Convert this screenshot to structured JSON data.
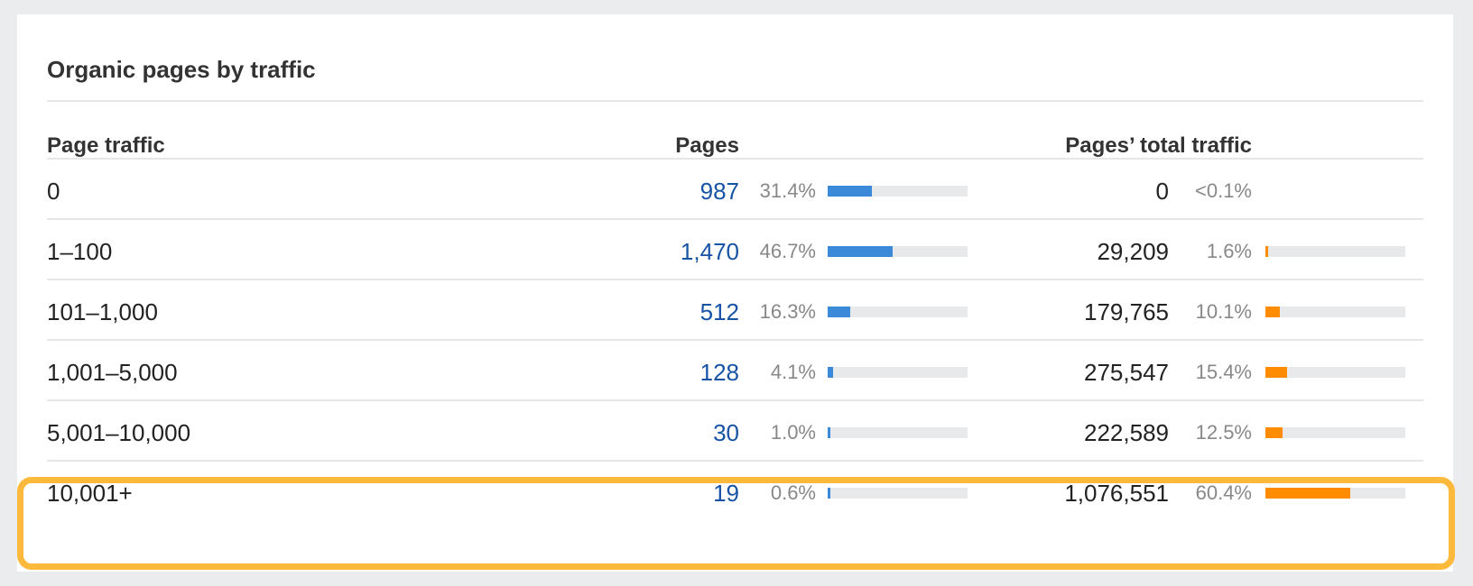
{
  "card": {
    "title": "Organic pages by traffic"
  },
  "table": {
    "headers": {
      "page_traffic": "Page traffic",
      "pages": "Pages",
      "total_traffic": "Pages’ total traffic"
    },
    "rows": [
      {
        "range": "0",
        "pages": "987",
        "pages_pct": "31.4%",
        "pages_fill": 0.314,
        "traffic": "0",
        "traffic_pct": "<0.1%",
        "traffic_fill": null
      },
      {
        "range": "1–100",
        "pages": "1,470",
        "pages_pct": "46.7%",
        "pages_fill": 0.467,
        "traffic": "29,209",
        "traffic_pct": "1.6%",
        "traffic_fill": 0.016
      },
      {
        "range": "101–1,000",
        "pages": "512",
        "pages_pct": "16.3%",
        "pages_fill": 0.163,
        "traffic": "179,765",
        "traffic_pct": "10.1%",
        "traffic_fill": 0.101
      },
      {
        "range": "1,001–5,000",
        "pages": "128",
        "pages_pct": "4.1%",
        "pages_fill": 0.041,
        "traffic": "275,547",
        "traffic_pct": "15.4%",
        "traffic_fill": 0.154
      },
      {
        "range": "5,001–10,000",
        "pages": "30",
        "pages_pct": "1.0%",
        "pages_fill": 0.01,
        "traffic": "222,589",
        "traffic_pct": "12.5%",
        "traffic_fill": 0.125
      },
      {
        "range": "10,001+",
        "pages": "19",
        "pages_pct": "0.6%",
        "pages_fill": 0.006,
        "traffic": "1,076,551",
        "traffic_pct": "60.4%",
        "traffic_fill": 0.604,
        "highlighted": true
      }
    ]
  },
  "colors": {
    "pages_bar": "#3a8ad9",
    "traffic_bar": "#ff8b00",
    "highlight": "#fdb93b",
    "link": "#1753a5"
  }
}
